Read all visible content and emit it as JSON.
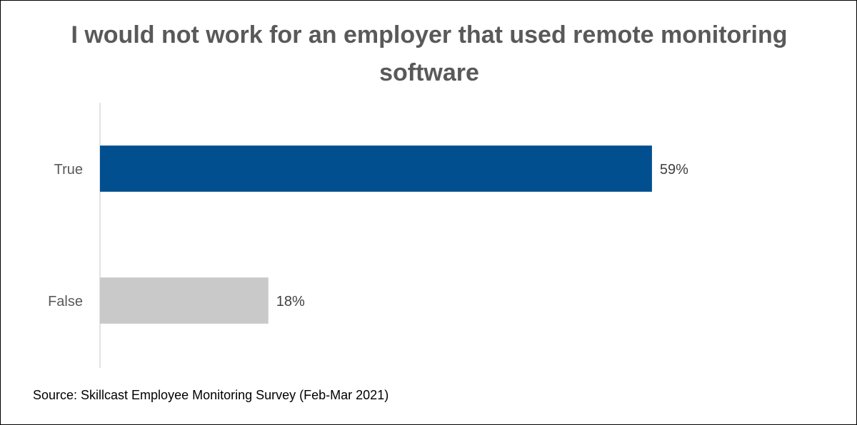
{
  "chart_data": {
    "type": "bar",
    "orientation": "horizontal",
    "title": "I would not work for an employer that used remote monitoring software",
    "categories": [
      "True",
      "False"
    ],
    "values": [
      59,
      18
    ],
    "value_labels": [
      "59%",
      "18%"
    ],
    "colors": [
      "#014f8f",
      "#c9c9c9"
    ],
    "xlim": [
      0,
      70
    ],
    "source": "Source: Skillcast Employee Monitoring Survey (Feb-Mar 2021)"
  }
}
